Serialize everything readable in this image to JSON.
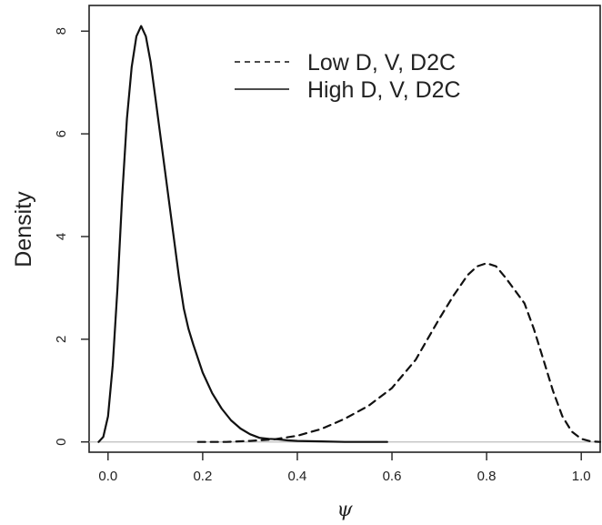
{
  "chart_data": {
    "type": "line",
    "xlabel": "ψ",
    "ylabel": "Density",
    "xlim": [
      -0.04,
      1.04
    ],
    "ylim": [
      -0.2,
      8.5
    ],
    "x_ticks": [
      0.0,
      0.2,
      0.4,
      0.6,
      0.8,
      1.0
    ],
    "x_tick_labels": [
      "0.0",
      "0.2",
      "0.4",
      "0.6",
      "0.8",
      "1.0"
    ],
    "y_ticks": [
      0,
      2,
      4,
      6,
      8
    ],
    "y_tick_labels": [
      "0",
      "2",
      "4",
      "6",
      "8"
    ],
    "grid": false,
    "baseline": {
      "y": 0,
      "color": "#bdbdbd"
    },
    "legend": {
      "position": "top-right",
      "entries": [
        {
          "label": "Low D, V, D2C",
          "style": "dashed"
        },
        {
          "label": "High D, V, D2C",
          "style": "solid"
        }
      ]
    },
    "series": [
      {
        "name": "Low D, V, D2C",
        "style": "dashed",
        "color": "#111111",
        "x": [
          0.19,
          0.25,
          0.3,
          0.35,
          0.4,
          0.45,
          0.5,
          0.55,
          0.6,
          0.65,
          0.7,
          0.73,
          0.76,
          0.78,
          0.8,
          0.82,
          0.84,
          0.86,
          0.88,
          0.9,
          0.92,
          0.94,
          0.96,
          0.98,
          1.0,
          1.02,
          1.04
        ],
        "y": [
          0.0,
          0.0,
          0.02,
          0.05,
          0.12,
          0.25,
          0.45,
          0.7,
          1.05,
          1.6,
          2.4,
          2.85,
          3.25,
          3.42,
          3.48,
          3.42,
          3.2,
          2.95,
          2.7,
          2.2,
          1.6,
          1.0,
          0.5,
          0.2,
          0.06,
          0.01,
          0.0
        ]
      },
      {
        "name": "High D, V, D2C",
        "style": "solid",
        "color": "#111111",
        "x": [
          -0.02,
          -0.01,
          0.0,
          0.01,
          0.02,
          0.03,
          0.04,
          0.05,
          0.06,
          0.07,
          0.08,
          0.09,
          0.1,
          0.11,
          0.12,
          0.13,
          0.14,
          0.15,
          0.16,
          0.17,
          0.18,
          0.2,
          0.22,
          0.24,
          0.26,
          0.28,
          0.3,
          0.32,
          0.34,
          0.36,
          0.38,
          0.4,
          0.45,
          0.5,
          0.55,
          0.59
        ],
        "y": [
          0.0,
          0.1,
          0.5,
          1.5,
          3.0,
          4.8,
          6.3,
          7.3,
          7.9,
          8.1,
          7.9,
          7.4,
          6.7,
          6.0,
          5.3,
          4.6,
          3.9,
          3.2,
          2.6,
          2.2,
          1.9,
          1.35,
          0.95,
          0.65,
          0.42,
          0.26,
          0.15,
          0.08,
          0.06,
          0.05,
          0.03,
          0.02,
          0.01,
          0.0,
          0.0,
          0.0
        ]
      }
    ]
  }
}
